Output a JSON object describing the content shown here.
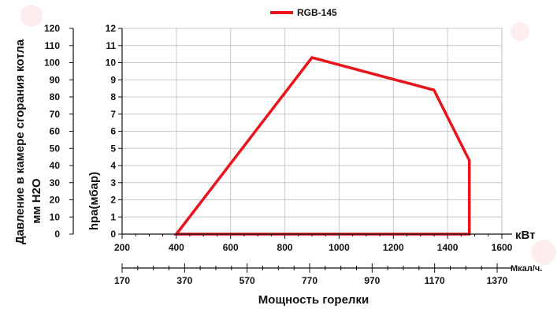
{
  "chart_data": {
    "type": "area",
    "legend": {
      "label": "RGB-145",
      "placement": "top-center"
    },
    "series": [
      {
        "name": "RGB-145",
        "color": "#e8141c",
        "points": [
          [
            400,
            0
          ],
          [
            900,
            10.3
          ],
          [
            1350,
            8.4
          ],
          [
            1480,
            4.3
          ],
          [
            1480,
            0
          ],
          [
            400,
            0
          ]
        ]
      }
    ],
    "y_right": {
      "label": "hpa(мбар)",
      "min": 0,
      "max": 12,
      "step": 1,
      "ticks": [
        "0",
        "1",
        "2",
        "3",
        "4",
        "5",
        "6",
        "7",
        "8",
        "9",
        "10",
        "11",
        "12"
      ]
    },
    "y_left": {
      "label_line1": "Давление в камере сгорания котла",
      "label_line2": "мм H2O",
      "ticks": [
        "0",
        "10",
        "20",
        "30",
        "40",
        "50",
        "60",
        "70",
        "80",
        "90",
        "100",
        "110",
        "120"
      ]
    },
    "x_kw": {
      "unit": "кВт",
      "min": 200,
      "max": 1600,
      "step": 200,
      "ticks": [
        "200",
        "400",
        "600",
        "800",
        "1000",
        "1200",
        "1400",
        "1600"
      ]
    },
    "x_mcal": {
      "unit": "Мкал/ч.",
      "ticks": [
        "170",
        "370",
        "570",
        "770",
        "970",
        "1170",
        "1370"
      ]
    },
    "xlabel": "Мощность горелки",
    "grid": true
  }
}
